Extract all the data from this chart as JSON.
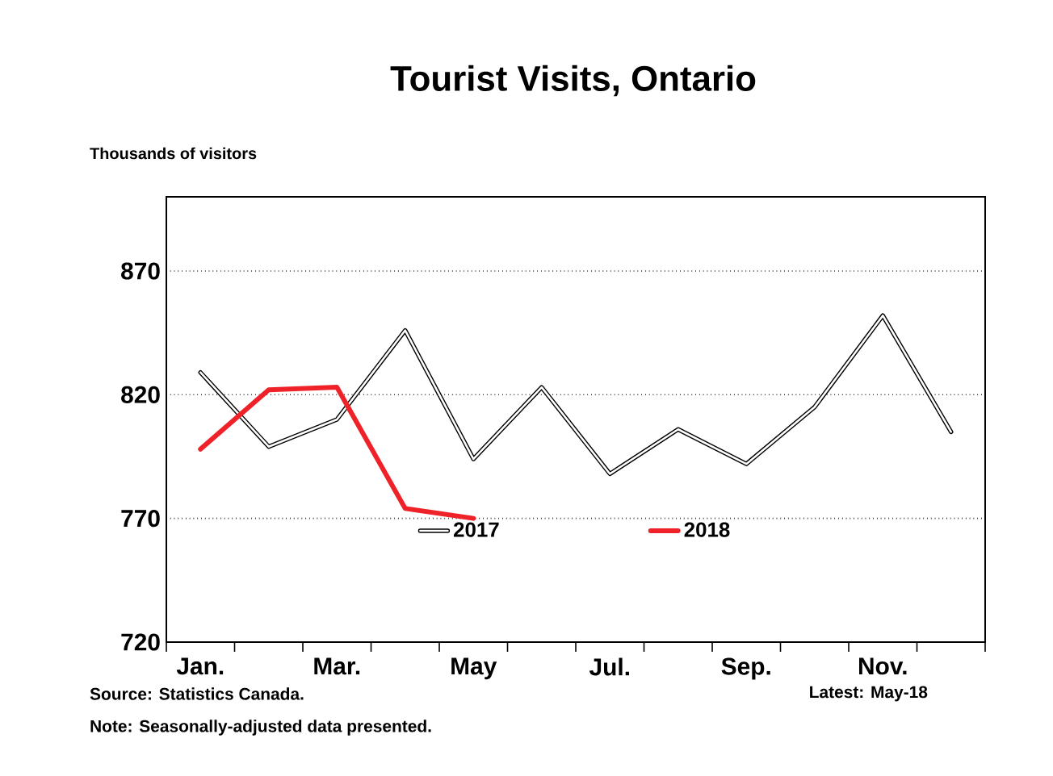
{
  "chart_data": {
    "type": "line",
    "title": "Tourist Visits, Ontario",
    "ylabel": "Thousands of visitors",
    "categories": [
      "Jan.",
      null,
      "Mar.",
      null,
      "May",
      null,
      "Jul.",
      null,
      "Sep.",
      null,
      "Nov.",
      null
    ],
    "series": [
      {
        "name": "2017",
        "color": "#ffffff",
        "values": [
          829,
          799,
          810,
          846,
          794,
          823,
          788,
          806,
          792,
          815,
          852,
          805
        ]
      },
      {
        "name": "2018",
        "color": "#ee2228",
        "values": [
          798,
          822,
          823,
          774,
          770,
          null,
          null,
          null,
          null,
          null,
          null,
          null
        ]
      }
    ],
    "ylim": [
      720,
      900
    ],
    "yticks": [
      720,
      770,
      820,
      870
    ],
    "grid": "y",
    "legend": "bottom",
    "marker": "none",
    "annotations": [
      "Source: Statistics Canada.",
      "Latest: May-18",
      "Note: Seasonally-adjusted data presented."
    ]
  }
}
